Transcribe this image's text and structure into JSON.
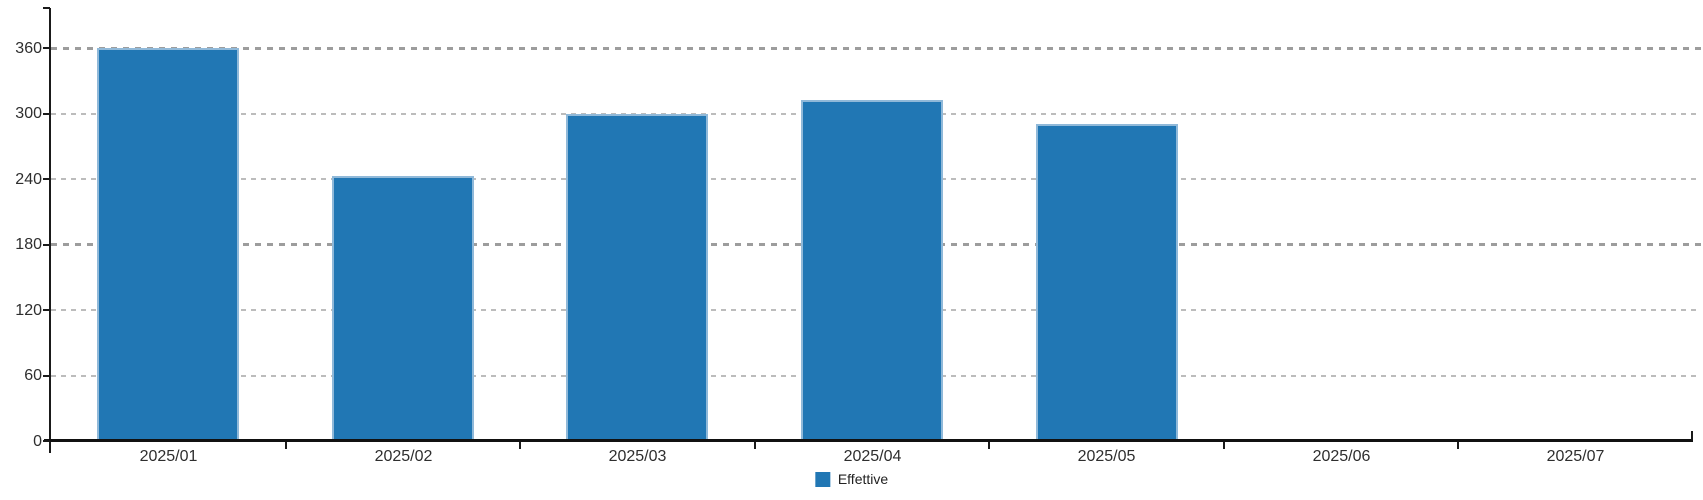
{
  "chart_data": {
    "type": "bar",
    "title": "",
    "categories": [
      "2025/01",
      "2025/02",
      "2025/03",
      "2025/04",
      "2025/05",
      "2025/06",
      "2025/07"
    ],
    "series": [
      {
        "name": "Effettive",
        "color": "#2177b4",
        "stroke_color": "#90b9d9",
        "values": [
          360,
          243,
          300,
          312,
          290,
          null,
          null
        ]
      }
    ],
    "y_ticks": [
      0,
      60,
      120,
      180,
      240,
      300,
      360
    ],
    "ylim": [
      0,
      396
    ],
    "xlabel": "",
    "ylabel": "",
    "grid": true,
    "gridline_style": "dashed",
    "legend_position": "bottom-center",
    "colors": {
      "axis": "#111111",
      "gridline_major": "#9d9d9d",
      "gridline_minor": "#bcbcbc",
      "tick_label": "#2e2e2e",
      "background": "#ffffff"
    }
  }
}
